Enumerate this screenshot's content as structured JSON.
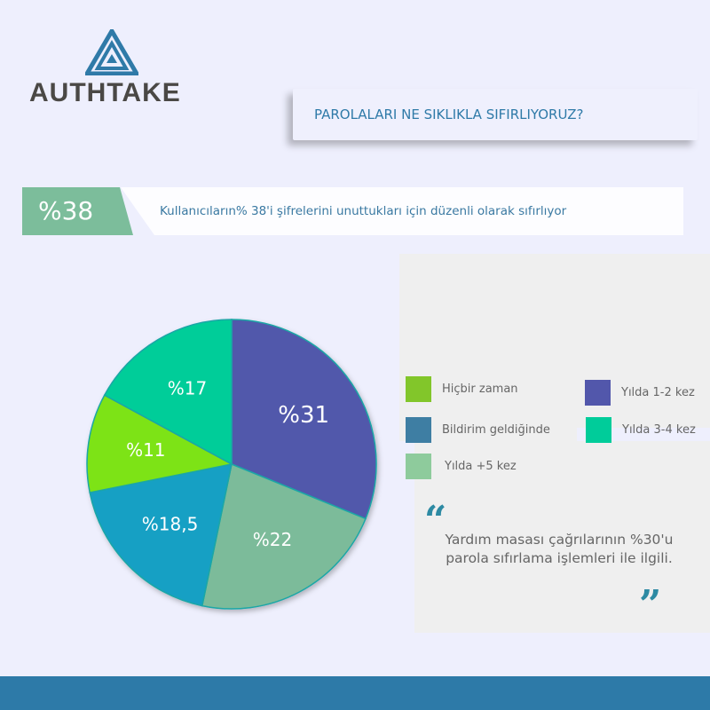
{
  "brand": {
    "name": "AUTHTAKE",
    "accent": "#2f7aa8"
  },
  "header": {
    "title": "PAROLALARI NE SIKLIKLA SIFIRLIYORUZ?"
  },
  "stat": {
    "value": "%38",
    "text": "Kullanıcıların% 38'i şifrelerini unuttukları için düzenli olarak sıfırlıyor"
  },
  "quote": {
    "text": "Yardım masası çağrılarının %30'u parola sıfırlama işlemleri ile ilgili."
  },
  "legend": [
    {
      "label": "Hiçbir zaman",
      "color": "#82c62a"
    },
    {
      "label": "Bildirim geldiğinde",
      "color": "#3e7ea3"
    },
    {
      "label": "Yılda +5 kez",
      "color": "#8ecb9c"
    },
    {
      "label": "Yılda 1-2 kez",
      "color": "#5257ab"
    },
    {
      "label": "Yılda 3-4 kez",
      "color": "#00cc9a"
    }
  ],
  "chart_data": {
    "type": "pie",
    "title": "PAROLALARI NE SIKLIKLA SIFIRLIYORUZ?",
    "slices": [
      {
        "category": "Yılda 1-2 kez",
        "value": 31,
        "label": "%31",
        "color": "#5158ab"
      },
      {
        "category": "Yılda +5 kez",
        "value": 22,
        "label": "%22",
        "color": "#7bbb9a"
      },
      {
        "category": "Bildirim geldiğinde",
        "value": 18.5,
        "label": "%18,5",
        "color": "#14a0c4"
      },
      {
        "category": "Hiçbir zaman",
        "value": 11,
        "label": "%11",
        "color": "#7de314"
      },
      {
        "category": "Yılda 3-4 kez",
        "value": 17,
        "label": "%17",
        "color": "#00cd99"
      }
    ],
    "start": "top",
    "direction": "clockwise",
    "legend": "right"
  }
}
